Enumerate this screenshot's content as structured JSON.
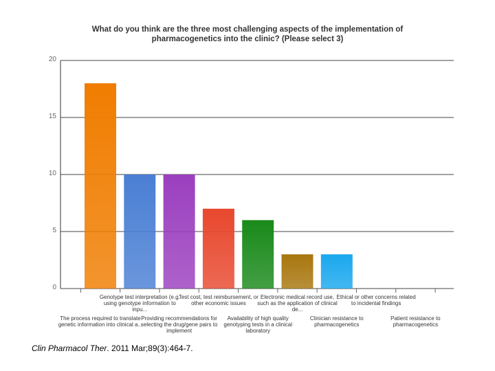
{
  "chart_data": {
    "type": "bar",
    "title": "What do you think are the three most challenging aspects of the implementation of pharmacogenetics into the clinic? (Please select 3)",
    "xlabel": "",
    "ylabel": "",
    "ylim": [
      0,
      20
    ],
    "yticks": [
      "20",
      "15",
      "10",
      "5",
      "0"
    ],
    "grid": true,
    "categories": [
      "The process required to translate genetic information into clinical a...",
      "Genotype test interpretation (e.g. using genotype information to inpu...",
      "Providing recommendations for selecting the drug/gene pairs to implement",
      "Test cost, test reimbursement, or other economic issues",
      "Availability of high quality genotyping tests in a clinical laboratory",
      "Electronic medical record use, such as the application of clinical de...",
      "Clinician resistance to pharmacogenetics",
      "Ethical or other concerns related to incidental findings",
      "Patient resistance to pharmacogenetics"
    ],
    "values": [
      18,
      10,
      10,
      7,
      6,
      3,
      3,
      0,
      0
    ],
    "colors": [
      "#f07d00",
      "#4a7fd4",
      "#9b3fbf",
      "#e8482e",
      "#1a8a1a",
      "#a8760e",
      "#1aa8ee",
      "#cccccc",
      "#cccccc"
    ]
  },
  "citation": {
    "journal": "Clin Pharmacol Ther",
    "details": ". 2011 Mar;89(3):464-7."
  }
}
